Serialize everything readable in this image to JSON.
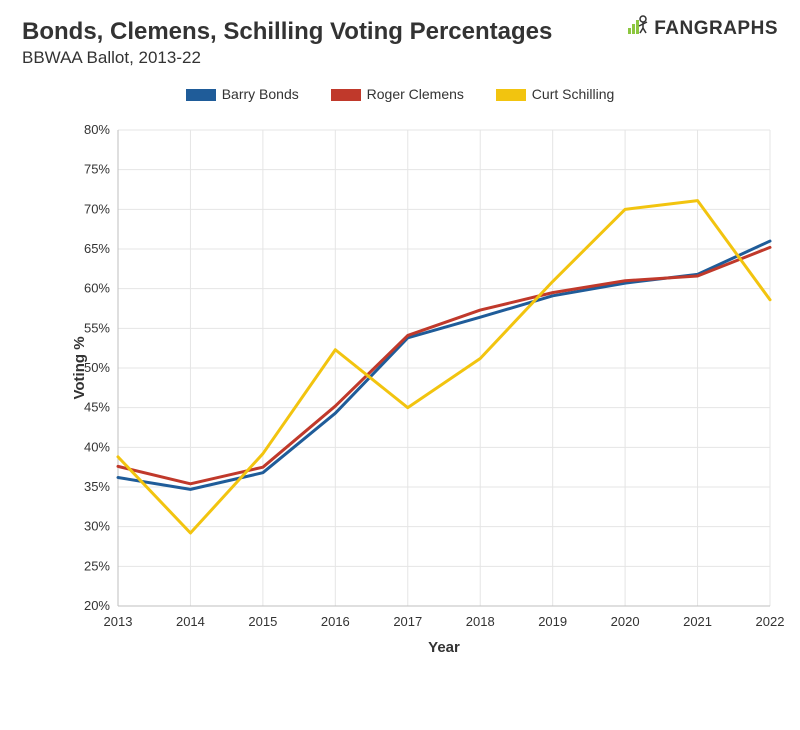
{
  "header": {
    "title": "Bonds, Clemens, Schilling Voting Percentages",
    "subtitle": "BBWAA Ballot, 2013-22"
  },
  "logo": {
    "text": "FANGRAPHS"
  },
  "chart": {
    "type": "line",
    "x_label": "Year",
    "y_label": "Voting %",
    "x_values": [
      2013,
      2014,
      2015,
      2016,
      2017,
      2018,
      2019,
      2020,
      2021,
      2022
    ],
    "x_tick_labels": [
      "2013",
      "2014",
      "2015",
      "2016",
      "2017",
      "2018",
      "2019",
      "2020",
      "2021",
      "2022"
    ],
    "xlim": [
      2013,
      2022
    ],
    "ylim": [
      20,
      80
    ],
    "ytick_step": 5,
    "y_tick_labels": [
      "20%",
      "25%",
      "30%",
      "35%",
      "40%",
      "45%",
      "50%",
      "55%",
      "60%",
      "65%",
      "70%",
      "75%",
      "80%"
    ],
    "grid_color": "#e5e5e5",
    "axis_color": "#bfbfbf",
    "background_color": "#ffffff",
    "line_width": 3,
    "label_fontsize": 15,
    "tick_fontsize": 13,
    "series": [
      {
        "name": "Barry Bonds",
        "color": "#1f5c99",
        "values": [
          36.2,
          34.7,
          36.8,
          44.3,
          53.8,
          56.4,
          59.1,
          60.7,
          61.8,
          66.0
        ]
      },
      {
        "name": "Roger Clemens",
        "color": "#c0392b",
        "values": [
          37.6,
          35.4,
          37.5,
          45.2,
          54.1,
          57.3,
          59.5,
          61.0,
          61.6,
          65.2
        ]
      },
      {
        "name": "Curt Schilling",
        "color": "#f2c40f",
        "values": [
          38.8,
          29.2,
          39.2,
          52.3,
          45.0,
          51.2,
          60.9,
          70.0,
          71.1,
          58.6
        ]
      }
    ]
  }
}
